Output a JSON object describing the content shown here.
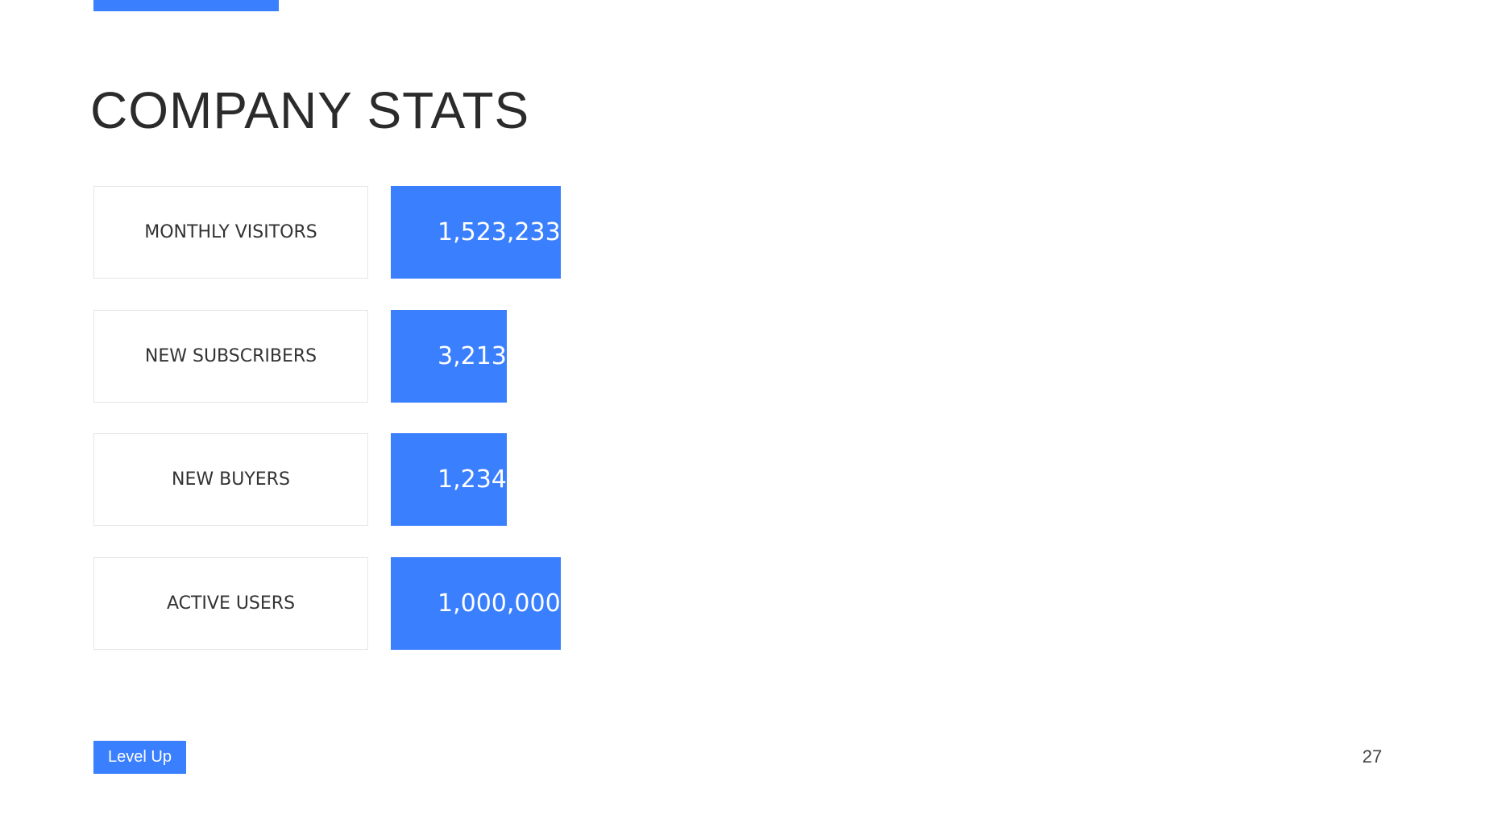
{
  "header": {
    "title": "COMPANY STATS"
  },
  "rows": [
    {
      "label": "MONTHLY VISITORS",
      "value": "1,523,233"
    },
    {
      "label": "NEW SUBSCRIBERS",
      "value": "3,213"
    },
    {
      "label": "NEW BUYERS",
      "value": "1,234"
    },
    {
      "label": "ACTIVE USERS",
      "value": "1,000,000"
    }
  ],
  "footer": {
    "tag": "Level Up",
    "page_number": 27
  }
}
